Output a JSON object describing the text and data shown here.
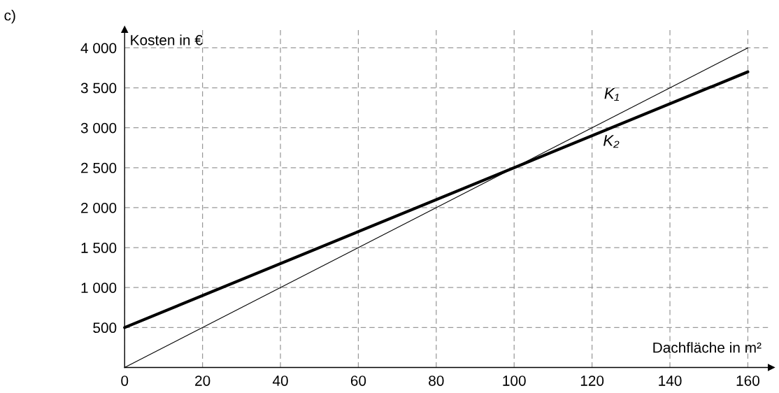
{
  "chart_data": {
    "type": "line",
    "xlabel": "Dachfläche in m²",
    "ylabel": "Kosten in €",
    "xlim": [
      0,
      166
    ],
    "ylim": [
      0,
      4230
    ],
    "xticks": [
      0,
      20,
      40,
      60,
      80,
      100,
      120,
      140,
      160
    ],
    "yticks": [
      {
        "value": 500,
        "label": "500"
      },
      {
        "value": 1000,
        "label": "1 000"
      },
      {
        "value": 1500,
        "label": "1 500"
      },
      {
        "value": 2000,
        "label": "2 000"
      },
      {
        "value": 2500,
        "label": "2 500"
      },
      {
        "value": 3000,
        "label": "3 000"
      },
      {
        "value": 3500,
        "label": "3 500"
      },
      {
        "value": 4000,
        "label": "4 000"
      }
    ],
    "grid": true,
    "line_style": "solid",
    "marker": "none",
    "series": [
      {
        "name": "K₁",
        "values": [
          0,
          4000
        ],
        "color": "#000000"
      },
      {
        "name": "K₂",
        "values": [
          500,
          3700
        ],
        "color": "#000000"
      }
    ],
    "x": [
      0,
      160
    ],
    "annotations": [
      "c)"
    ]
  }
}
